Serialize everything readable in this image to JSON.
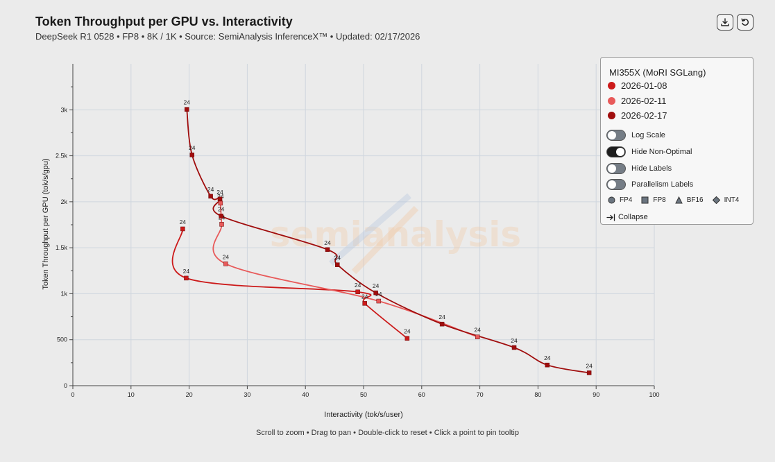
{
  "header": {
    "title": "Token Throughput per GPU vs. Interactivity",
    "subtitle": "DeepSeek R1 0528 • FP8 • 8K / 1K • Source: SemiAnalysis InferenceX™ • Updated: 02/17/2026"
  },
  "icons": {
    "download": "download-icon",
    "reset": "reset-icon",
    "collapse": "collapse-arrow-icon"
  },
  "watermark": "semianalysis",
  "legend": {
    "heading": "MI355X (MoRI SGLang)",
    "series": [
      {
        "label": "2026-01-08",
        "color": "#cc1a1a"
      },
      {
        "label": "2026-02-11",
        "color": "#e85a5a"
      },
      {
        "label": "2026-02-17",
        "color": "#a00d0d"
      }
    ],
    "toggles": [
      {
        "label": "Log Scale",
        "on": false
      },
      {
        "label": "Hide Non-Optimal",
        "on": true
      },
      {
        "label": "Hide Labels",
        "on": false
      },
      {
        "label": "Parallelism Labels",
        "on": false
      }
    ],
    "precisions": [
      {
        "label": "FP4",
        "shape": "circle"
      },
      {
        "label": "FP8",
        "shape": "square"
      },
      {
        "label": "BF16",
        "shape": "triangle"
      },
      {
        "label": "INT4",
        "shape": "diamond"
      }
    ],
    "collapse_label": "Collapse"
  },
  "footer": {
    "hint": "Scroll to zoom • Drag to pan • Double-click to reset • Click a point to pin tooltip"
  },
  "chart_data": {
    "type": "line",
    "title": "Token Throughput per GPU vs. Interactivity",
    "subtitle": "DeepSeek R1 0528 • FP8 • 8K / 1K • Source: SemiAnalysis InferenceX™ • Updated: 02/17/2026",
    "xlabel": "Interactivity (tok/s/user)",
    "ylabel": "Token Throughput per GPU (tok/s/gpu)",
    "xlim": [
      0,
      100
    ],
    "ylim": [
      0,
      3500
    ],
    "xticks": [
      0,
      10,
      20,
      30,
      40,
      50,
      60,
      70,
      80,
      90,
      100
    ],
    "xtick_labels": [
      "0",
      "10",
      "20",
      "30",
      "40",
      "50",
      "60",
      "70",
      "80",
      "90",
      "100"
    ],
    "yticks": [
      0,
      500,
      1000,
      1500,
      2000,
      2500,
      3000
    ],
    "ytick_labels": [
      "0",
      "500",
      "1k",
      "1.5k",
      "2k",
      "2.5k",
      "3k"
    ],
    "grid": true,
    "legend": "top-right",
    "series": [
      {
        "name": "2026-01-08",
        "color": "#cc1a1a",
        "marker": "square",
        "x": [
          18.9,
          19.5,
          49.0,
          50.2,
          57.5
        ],
        "y": [
          1705,
          1170,
          1020,
          895,
          515
        ],
        "labels": [
          "24",
          "24",
          "24",
          "24",
          "24"
        ]
      },
      {
        "name": "2026-02-11",
        "color": "#e85a5a",
        "marker": "square",
        "x": [
          25.4,
          25.6,
          26.3,
          52.6,
          69.6
        ],
        "y": [
          1985,
          1755,
          1325,
          920,
          530
        ],
        "labels": [
          "24",
          "24",
          "24",
          "24",
          "24"
        ]
      },
      {
        "name": "2026-02-17",
        "color": "#a00d0d",
        "marker": "square",
        "x": [
          19.6,
          20.5,
          23.7,
          25.3,
          25.5,
          43.8,
          45.5,
          52.1,
          63.5,
          75.9,
          81.6,
          88.8
        ],
        "y": [
          3005,
          2510,
          2060,
          2030,
          1845,
          1480,
          1315,
          1010,
          670,
          415,
          225,
          140
        ],
        "labels": [
          "24",
          "24",
          "24",
          "24",
          "24",
          "24",
          "24",
          "24",
          "24",
          "24",
          "24",
          "24"
        ]
      }
    ]
  }
}
